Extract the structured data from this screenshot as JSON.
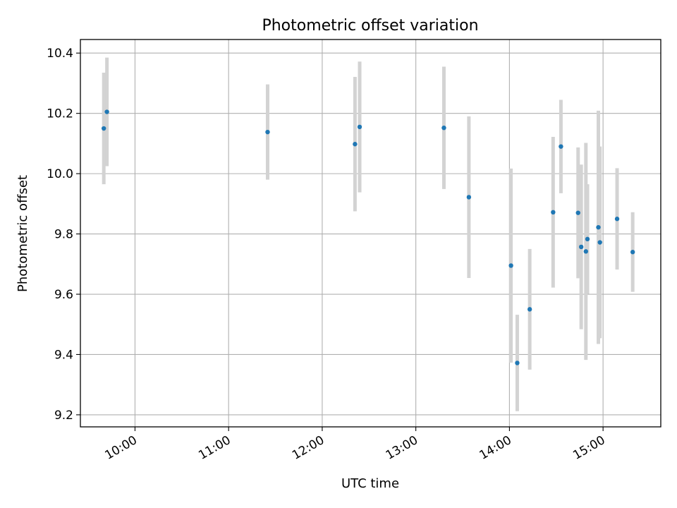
{
  "chart_data": {
    "type": "scatter",
    "title": "Photometric offset variation",
    "xlabel": "UTC time",
    "ylabel": "Photometric offset",
    "xlim": [
      "09:25",
      "15:37"
    ],
    "ylim": [
      9.16,
      10.445
    ],
    "grid": true,
    "legend": "none",
    "x_ticks": [
      "10:00",
      "11:00",
      "12:00",
      "13:00",
      "14:00",
      "15:00"
    ],
    "y_ticks": [
      "9.2",
      "9.4",
      "9.6",
      "9.8",
      "10.0",
      "10.2",
      "10.4"
    ],
    "colors": {
      "points": "#1f77b4",
      "errorbars": "#d3d3d3",
      "grid": "#b0b0b0"
    },
    "series": [
      {
        "x": [
          "09:40",
          "09:42",
          "11:25",
          "12:21",
          "12:24",
          "13:18",
          "13:34",
          "14:01",
          "14:05",
          "14:13",
          "14:28",
          "14:33",
          "14:44",
          "14:46",
          "14:49",
          "14:50",
          "14:57",
          "14:58",
          "15:09",
          "15:19"
        ],
        "y": [
          10.15,
          10.205,
          10.138,
          10.098,
          10.155,
          10.152,
          9.922,
          9.695,
          9.372,
          9.55,
          9.872,
          10.09,
          9.87,
          9.757,
          9.742,
          9.783,
          9.822,
          9.772,
          9.85,
          9.74
        ],
        "yerr": [
          0.185,
          0.18,
          0.158,
          0.223,
          0.217,
          0.203,
          0.268,
          0.322,
          0.16,
          0.2,
          0.25,
          0.155,
          0.217,
          0.273,
          0.36,
          0.182,
          0.387,
          0.318,
          0.168,
          0.132
        ]
      }
    ]
  }
}
